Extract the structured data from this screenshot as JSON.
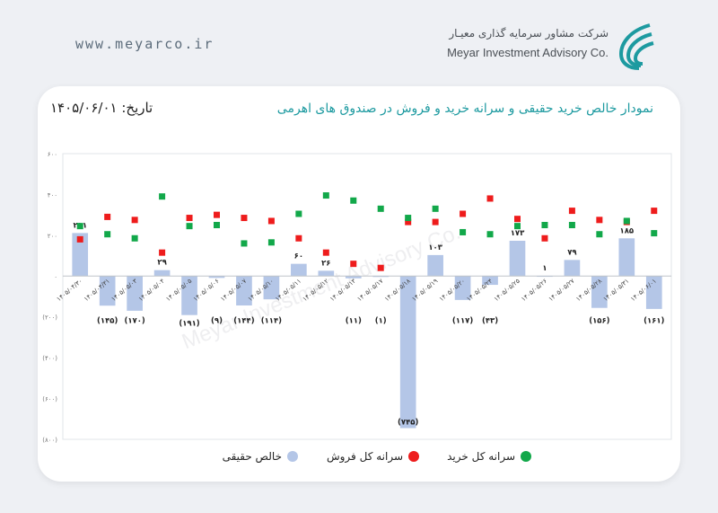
{
  "header": {
    "site_url": "www.meyarco.ir",
    "brand_name_fa": "شرکت مشاور سرمایه گذاری معیـار",
    "brand_name_en": "Meyar Investment Advisory Co.",
    "logo_icon": "meyar-logo-icon",
    "accent_color": "#1d9aa0"
  },
  "card": {
    "title": "نمودار خالص خرید حقیقی و سرانه خرید و فروش در صندوق های اهرمی",
    "date_label": "تاریخ: ۱۴۰۵/۰۶/۰۱"
  },
  "watermark": "Meyar Investment Advisory Co.",
  "legend": {
    "net": "خالص حقیقی",
    "sell": "سرانه کل فروش",
    "buy": "سرانه کل خرید"
  },
  "colors": {
    "net": "#b4c6e7",
    "sell": "#ee1c1c",
    "buy": "#12a84a"
  },
  "chart_data": {
    "type": "bar",
    "y_ticks": [
      "۶۰۰",
      "۴۰۰",
      "۲۰۰",
      "۰",
      "(۲۰۰)",
      "(۴۰۰)",
      "(۶۰۰)",
      "(۸۰۰)"
    ],
    "ylim": [
      -800,
      600
    ],
    "categories": [
      "۱۴۰۵/۰۴/۳۰",
      "۱۴۰۵/۰۴/۳۱",
      "۱۴۰۵/۰۵/۰۳",
      "۱۴۰۵/۰۵/۰۴",
      "۱۴۰۵/۰۵/۰۵",
      "۱۴۰۵/۰۵/۰۶",
      "۱۴۰۵/۰۵/۰۷",
      "۱۴۰۵/۰۵/۱۰",
      "۱۴۰۵/۰۵/۱۱",
      "۱۴۰۵/۰۵/۱۲",
      "۱۴۰۵/۰۵/۱۳",
      "۱۴۰۵/۰۵/۱۷",
      "۱۴۰۵/۰۵/۱۸",
      "۱۴۰۵/۰۵/۱۹",
      "۱۴۰۵/۰۵/۲۰",
      "۱۴۰۵/۰۵/۲۴",
      "۱۴۰۵/۰۵/۲۵",
      "۱۴۰۵/۰۵/۲۶",
      "۱۴۰۵/۰۵/۲۷",
      "۱۴۰۵/۰۵/۲۸",
      "۱۴۰۵/۰۵/۳۱",
      "۱۴۰۵/۰۶/۰۱"
    ],
    "series": [
      {
        "name": "خالص حقیقی",
        "kind": "bar",
        "values": [
          211,
          -145,
          -170,
          29,
          -191,
          -9,
          -144,
          -114,
          60,
          26,
          -11,
          -1,
          -745,
          103,
          -117,
          -43,
          173,
          1,
          79,
          -156,
          185,
          -161
        ],
        "labels": [
          "۲۱۱",
          "(۱۴۵)",
          "(۱۷۰)",
          "۲۹",
          "(۱۹۱)",
          "(۹)",
          "(۱۴۴)",
          "(۱۱۴)",
          "۶۰",
          "۲۶",
          "(۱۱)",
          "(۱)",
          "(۷۴۵)",
          "۱۰۳",
          "(۱۱۷)",
          "(۴۳)",
          "۱۷۳",
          "۱",
          "۷۹",
          "(۱۵۶)",
          "۱۸۵",
          "(۱۶۱)"
        ]
      },
      {
        "name": "سرانه کل فروش",
        "kind": "point",
        "values": [
          180,
          290,
          275,
          115,
          285,
          300,
          285,
          270,
          185,
          115,
          60,
          40,
          265,
          265,
          305,
          380,
          280,
          185,
          320,
          275,
          265,
          320
        ]
      },
      {
        "name": "سرانه کل خرید",
        "kind": "point",
        "values": [
          245,
          205,
          185,
          390,
          245,
          250,
          160,
          165,
          305,
          395,
          370,
          330,
          285,
          330,
          215,
          205,
          245,
          250,
          250,
          205,
          270,
          210
        ]
      }
    ]
  }
}
